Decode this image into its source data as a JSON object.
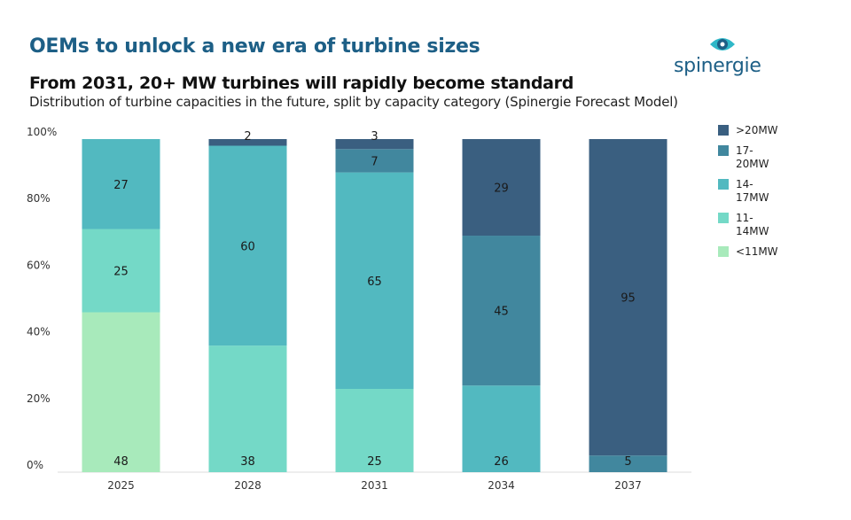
{
  "header": {
    "title": "OEMs to unlock a new era of turbine sizes",
    "subtitle": "From 2031, 20+ MW turbines will rapidly become standard",
    "description": "Distribution of turbine capacities in the future, split by capacity category (Spinergie Forecast Model)"
  },
  "logo": {
    "text": "spinergie",
    "icon": "eye-icon",
    "color": "#1d5f86",
    "accent": "#2fb8c8"
  },
  "chart_data": {
    "type": "bar",
    "stacked": true,
    "categories": [
      "2025",
      "2028",
      "2031",
      "2034",
      "2037"
    ],
    "y_ticks": [
      "0%",
      "20%",
      "40%",
      "60%",
      "80%",
      "100%"
    ],
    "ylim": [
      0,
      100
    ],
    "legend_position": "right",
    "series": [
      {
        "name": "<11MW",
        "color": "#a8eabb",
        "values": [
          48,
          0,
          0,
          0,
          0
        ],
        "labels": [
          "48",
          "",
          "",
          "",
          ""
        ]
      },
      {
        "name": "11-14MW",
        "color": "#74d9c7",
        "values": [
          25,
          38,
          25,
          0,
          0
        ],
        "labels": [
          "25",
          "38",
          "25",
          "",
          ""
        ]
      },
      {
        "name": "14-17MW",
        "color": "#52b9c0",
        "values": [
          27,
          60,
          65,
          26,
          0
        ],
        "labels": [
          "27",
          "60",
          "65",
          "26",
          ""
        ]
      },
      {
        "name": "17-20MW",
        "color": "#41879e",
        "values": [
          0,
          0,
          7,
          45,
          5
        ],
        "labels": [
          "",
          "",
          "7",
          "45",
          "5"
        ]
      },
      {
        "name": ">20MW",
        "color": "#3a5f80",
        "values": [
          0,
          2,
          3,
          29,
          95
        ],
        "labels": [
          "",
          "2",
          "3",
          "29",
          "95"
        ]
      }
    ],
    "legend": [
      ">20MW",
      "17-20MW",
      "14-17MW",
      "11-14MW",
      "<11MW"
    ]
  }
}
